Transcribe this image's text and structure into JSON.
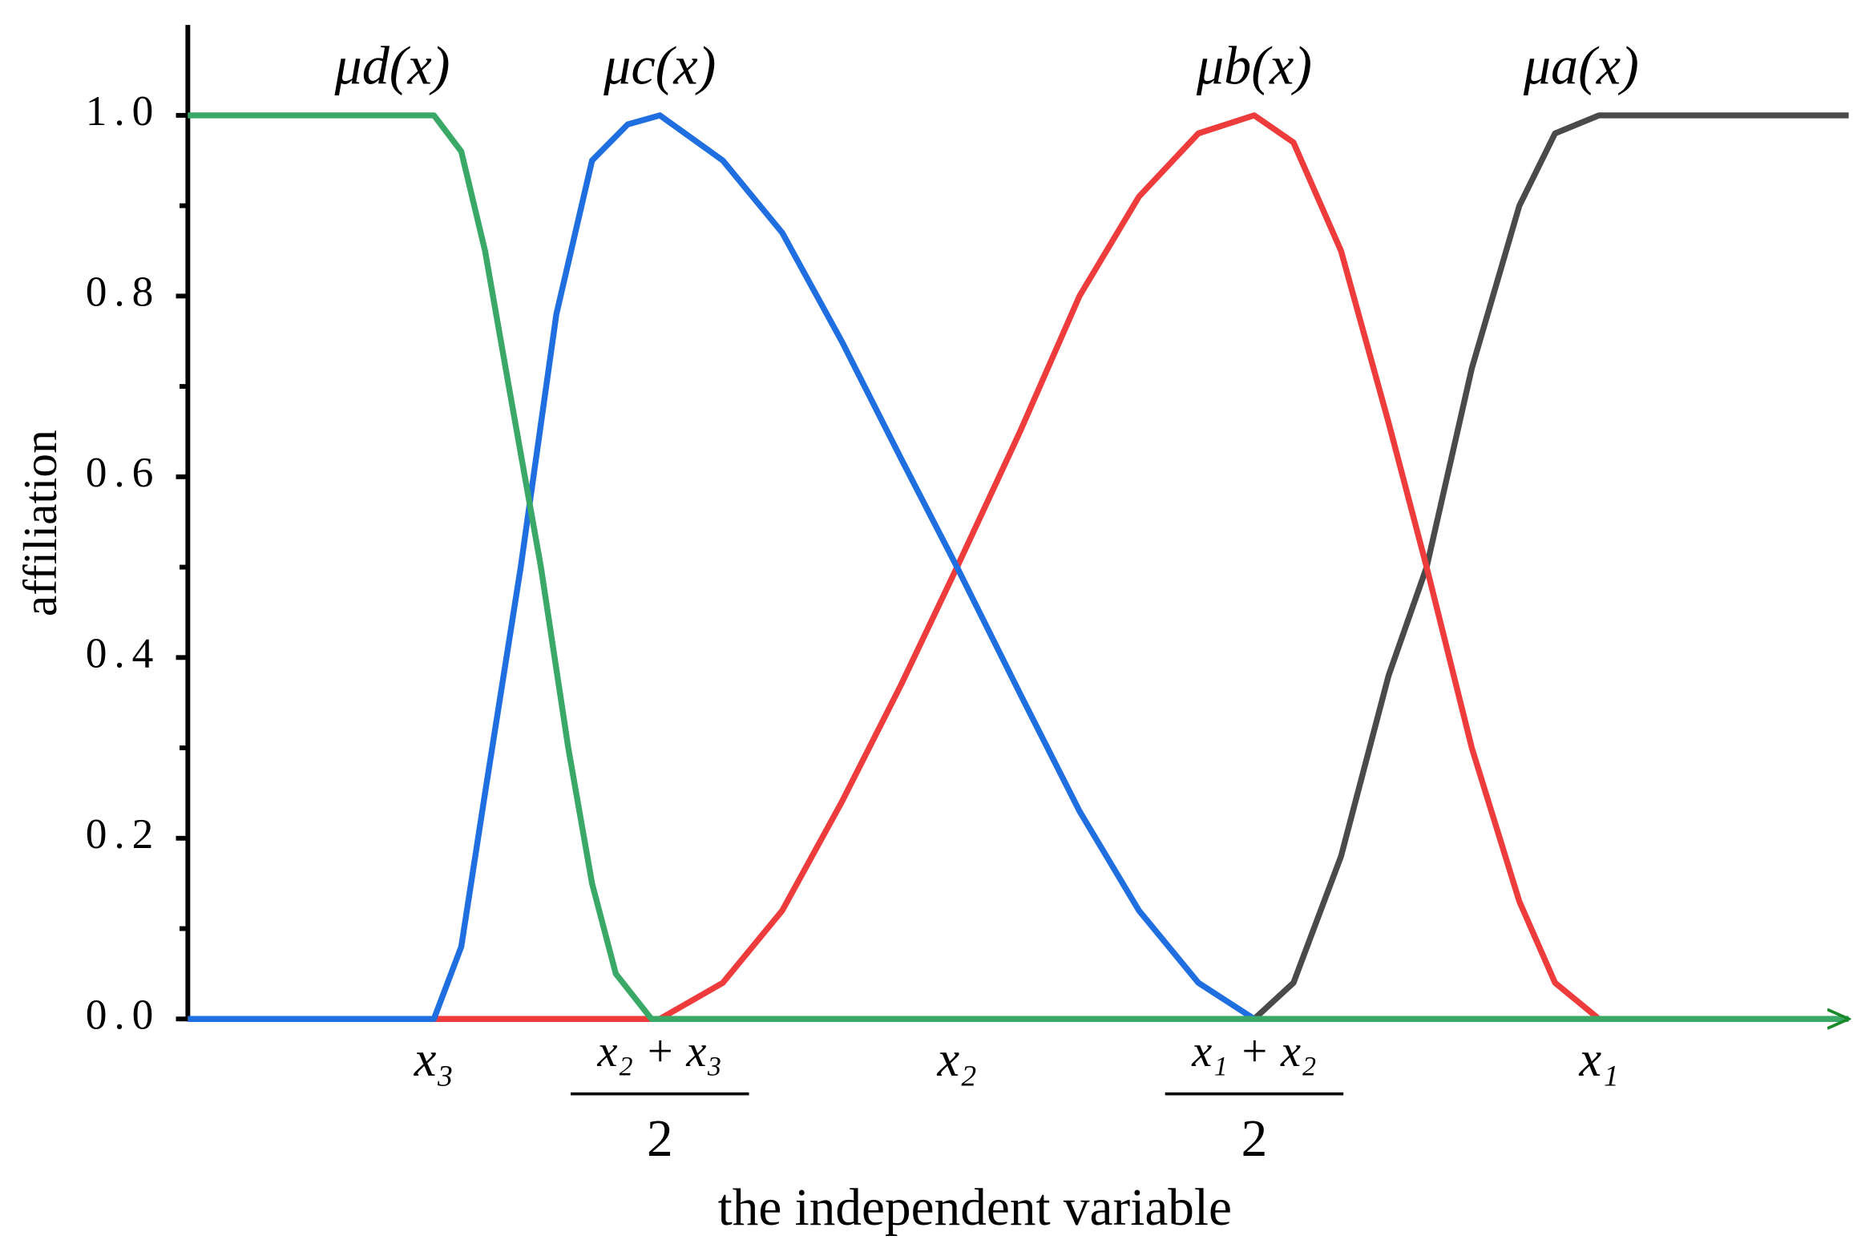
{
  "chart_data": {
    "type": "line",
    "x_label": "the independent variable",
    "y_label": "affiliation",
    "xlim": [
      0,
      14
    ],
    "ylim": [
      0,
      1.1
    ],
    "xticks": [
      {
        "value": 2.07,
        "label": "x₃"
      },
      {
        "value": 3.97,
        "label": "x₂ + x₃",
        "denominator": "2"
      },
      {
        "value": 6.47,
        "label": "x₂"
      },
      {
        "value": 8.97,
        "label": "x₁ + x₂",
        "denominator": "2"
      },
      {
        "value": 11.87,
        "label": "x₁"
      }
    ],
    "yticks": [
      {
        "value": 0,
        "label": "0.0"
      },
      {
        "value": 0.2,
        "label": "0.2"
      },
      {
        "value": 0.4,
        "label": "0.4"
      },
      {
        "value": 0.6,
        "label": "0.6"
      },
      {
        "value": 0.8,
        "label": "0.8"
      },
      {
        "value": 1,
        "label": "1.0"
      }
    ],
    "minor_yticks": [
      0.1,
      0.3,
      0.5,
      0.7,
      0.9
    ],
    "series": [
      {
        "name": "μa(x)",
        "color": "#4a4a4a",
        "x": [
          0,
          8.97,
          9.3,
          9.7,
          10.1,
          10.42,
          10.8,
          11.2,
          11.5,
          11.87,
          13.97
        ],
        "values": [
          0,
          0,
          0.04,
          0.18,
          0.38,
          0.5,
          0.72,
          0.9,
          0.98,
          1,
          1
        ]
      },
      {
        "name": "μb(x)",
        "color": "#ee3b3b",
        "x": [
          0,
          3.97,
          4.5,
          5.0,
          5.5,
          6.0,
          6.47,
          7.0,
          7.5,
          8.0,
          8.5,
          8.97,
          9.3,
          9.7,
          10.1,
          10.42,
          10.8,
          11.2,
          11.5,
          11.87
        ],
        "values": [
          0,
          0,
          0.04,
          0.12,
          0.24,
          0.37,
          0.5,
          0.65,
          0.8,
          0.91,
          0.98,
          1,
          0.97,
          0.85,
          0.66,
          0.5,
          0.3,
          0.13,
          0.04,
          0
        ]
      },
      {
        "name": "μc(x)",
        "color": "#1f6fe0",
        "x": [
          0,
          2.07,
          2.3,
          2.5,
          2.8,
          3.1,
          3.4,
          3.7,
          3.97,
          4.5,
          5.0,
          5.5,
          6.0,
          6.47,
          7.0,
          7.5,
          8.0,
          8.5,
          8.97
        ],
        "values": [
          0,
          0,
          0.08,
          0.25,
          0.5,
          0.78,
          0.95,
          0.99,
          1,
          0.95,
          0.87,
          0.75,
          0.62,
          0.5,
          0.36,
          0.23,
          0.12,
          0.04,
          0
        ]
      },
      {
        "name": "μd(x)",
        "color": "#3aa866",
        "x": [
          0,
          2.07,
          2.3,
          2.5,
          2.7,
          2.97,
          3.2,
          3.4,
          3.6,
          3.9,
          13.97
        ],
        "values": [
          1,
          1,
          0.96,
          0.85,
          0.7,
          0.5,
          0.3,
          0.15,
          0.05,
          0,
          0
        ]
      }
    ]
  }
}
